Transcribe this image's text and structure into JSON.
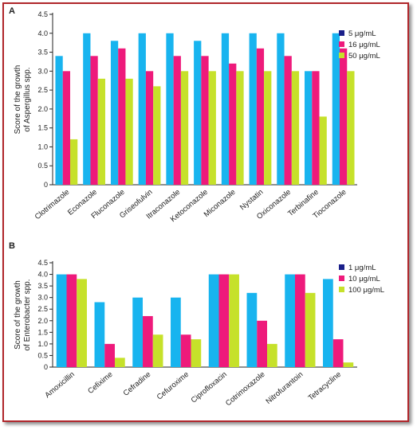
{
  "colors": {
    "frame": "#b0262b",
    "series": [
      "#18b4ef",
      "#ee1a7b",
      "#c6e12a"
    ]
  },
  "chart_data": [
    {
      "panel_label": "A",
      "type": "bar",
      "ylabel": "Score of the growth\nof Aspergillus spp.",
      "ylim": [
        0,
        4.5
      ],
      "yticks": [
        "0",
        "0.5",
        "1.0",
        "1.5",
        "2.0",
        "2.5",
        "3.0",
        "3.5",
        "4.0",
        "4.5"
      ],
      "categories": [
        "Clotrimazole",
        "Econazole",
        "Fluconazole",
        "Griseofulvin",
        "Itraconazole",
        "Ketoconazole",
        "Miconazole",
        "Nystatin",
        "Oxiconazole",
        "Terbinafine",
        "Tioconazole"
      ],
      "series": [
        {
          "name": "5 μg/mL",
          "values": [
            3.4,
            4.0,
            3.8,
            4.0,
            4.0,
            3.8,
            4.0,
            4.0,
            4.0,
            3.0,
            4.0
          ]
        },
        {
          "name": "16 μg/mL",
          "values": [
            3.0,
            3.4,
            3.6,
            3.0,
            3.4,
            3.4,
            3.2,
            3.6,
            3.4,
            3.0,
            3.6
          ]
        },
        {
          "name": "50 μg/mL",
          "values": [
            1.2,
            2.8,
            2.8,
            2.6,
            3.0,
            3.0,
            3.0,
            3.0,
            3.0,
            1.8,
            3.0
          ]
        }
      ],
      "legend_position": "top-right"
    },
    {
      "panel_label": "B",
      "type": "bar",
      "ylabel": "Score of the growth\nof Enterobacter spp.",
      "ylim": [
        0,
        4.5
      ],
      "yticks": [
        "0",
        "0.5",
        "1.0",
        "1.5",
        "2.0",
        "2.5",
        "3.0",
        "3.5",
        "4.0",
        "4.5"
      ],
      "categories": [
        "Amoxicillin",
        "Cefixime",
        "Cefradine",
        "Cefuroxime",
        "Ciprofloxacin",
        "Cotrimoxazole",
        "Nitrofurantoin",
        "Tetracycline"
      ],
      "series": [
        {
          "name": "1 μg/mL",
          "values": [
            4.0,
            2.8,
            3.0,
            3.0,
            4.0,
            3.2,
            4.0,
            3.8
          ]
        },
        {
          "name": "10 μg/mL",
          "values": [
            4.0,
            1.0,
            2.2,
            1.4,
            4.0,
            2.0,
            4.0,
            1.2
          ]
        },
        {
          "name": "100 μg/mL",
          "values": [
            3.8,
            0.4,
            1.4,
            1.2,
            4.0,
            1.0,
            3.2,
            0.2
          ]
        }
      ],
      "legend_position": "top-right"
    }
  ]
}
